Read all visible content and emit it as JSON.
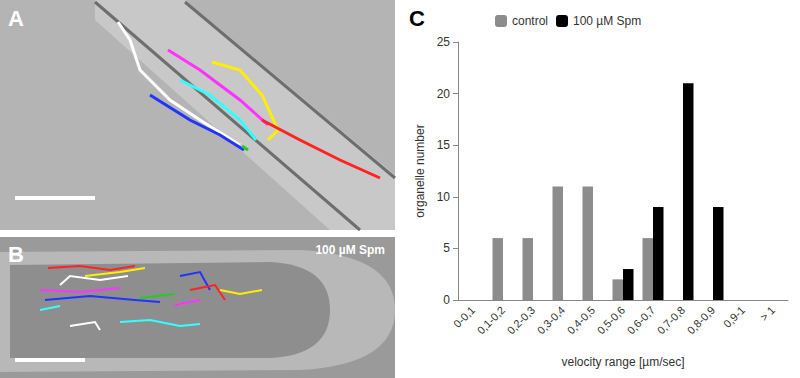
{
  "panels": [
    {
      "label": "A"
    },
    {
      "label": "B",
      "annotation": "100 µM Spm"
    }
  ],
  "chart_data": {
    "type": "bar",
    "title": "C",
    "categories": [
      "0-0,1",
      "0,1-0,2",
      "0,2-0,3",
      "0,3-0,4",
      "0,4-0,5",
      "0,5-0,6",
      "0,6-0,7",
      "0,7-0,8",
      "0,8-0,9",
      "0,9-1",
      "> 1"
    ],
    "series": [
      {
        "name": "control",
        "color": "#8c8c8c",
        "values": [
          0,
          6,
          6,
          11,
          11,
          2,
          6,
          0,
          0,
          0,
          0
        ]
      },
      {
        "name": "100 µM Spm",
        "color": "#000000",
        "values": [
          0,
          0,
          0,
          0,
          0,
          3,
          9,
          21,
          9,
          0,
          0
        ]
      }
    ],
    "x_label": "velocity range [µm/sec]",
    "y_label": "organelle number",
    "ylim": [
      0,
      25
    ],
    "yticks": [
      0,
      5,
      10,
      15,
      20,
      25
    ],
    "grid": false,
    "legend": "top"
  }
}
